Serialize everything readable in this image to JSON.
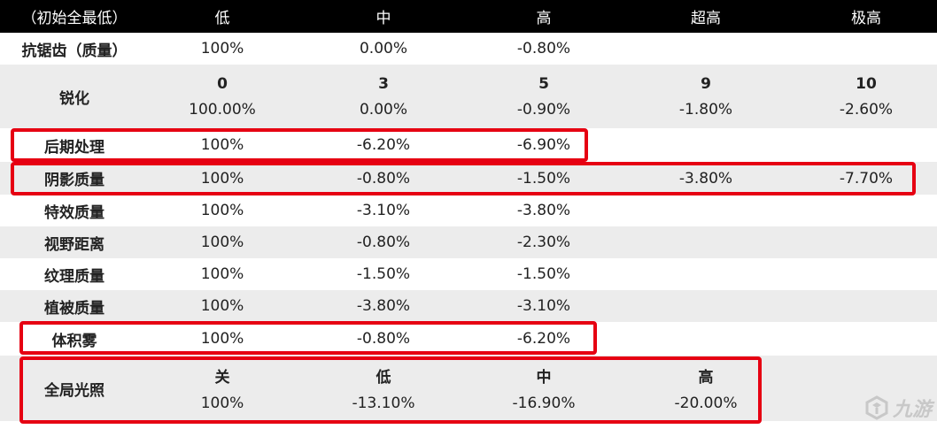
{
  "header": {
    "corner": "（初始全最低）",
    "levels": [
      "低",
      "中",
      "高",
      "超高",
      "极高"
    ]
  },
  "rows": {
    "antialias": {
      "label": "抗锯齿（质量）",
      "values": [
        "100%",
        "0.00%",
        "-0.80%"
      ]
    },
    "sharpen": {
      "label": "锐化",
      "levels": [
        "0",
        "3",
        "5",
        "9",
        "10"
      ],
      "values": [
        "100.00%",
        "0.00%",
        "-0.90%",
        "-1.80%",
        "-2.60%"
      ]
    },
    "postprocess": {
      "label": "后期处理",
      "values": [
        "100%",
        "-6.20%",
        "-6.90%"
      ]
    },
    "shadow": {
      "label": "阴影质量",
      "values": [
        "100%",
        "-0.80%",
        "-1.50%",
        "-3.80%",
        "-7.70%"
      ]
    },
    "effects": {
      "label": "特效质量",
      "values": [
        "100%",
        "-3.10%",
        "-3.80%"
      ]
    },
    "viewdist": {
      "label": "视野距离",
      "values": [
        "100%",
        "-0.80%",
        "-2.30%"
      ]
    },
    "texture": {
      "label": "纹理质量",
      "values": [
        "100%",
        "-1.50%",
        "-1.50%"
      ]
    },
    "foliage": {
      "label": "植被质量",
      "values": [
        "100%",
        "-3.80%",
        "-3.10%"
      ]
    },
    "fog": {
      "label": "体积雾",
      "values": [
        "100%",
        "-0.80%",
        "-6.20%"
      ]
    },
    "gi": {
      "label": "全局光照",
      "levels": [
        "关",
        "低",
        "中",
        "高"
      ],
      "values": [
        "100%",
        "-13.10%",
        "-16.90%",
        "-20.00%"
      ]
    }
  },
  "watermark": {
    "text": "九游",
    "icon": "nine-game-logo-icon"
  },
  "colors": {
    "header_bg": "#000000",
    "shade": "#ececec",
    "highlight": "#e60012"
  }
}
